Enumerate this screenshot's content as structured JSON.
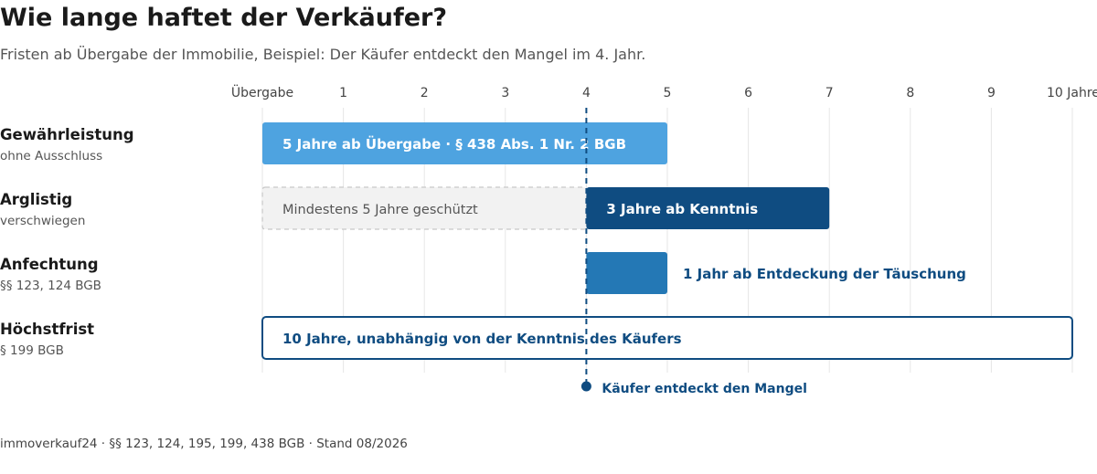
{
  "header": {
    "title": "Wie lange haftet der Verkäufer?",
    "subtitle": "Fristen ab Übergabe der Immobilie, Beispiel: Der Käufer entdeckt den Mangel im 4. Jahr."
  },
  "footer": {
    "source": "immoverkauf24 · §§ 123, 124, 195, 199, 438 BGB · Stand 08/2026"
  },
  "chart_data": {
    "type": "bar",
    "orientation": "horizontal-timeline",
    "x_unit": "Jahre ab Übergabe",
    "xlim": [
      0,
      10
    ],
    "x_ticks": [
      {
        "value": 0,
        "label": "Übergabe"
      },
      {
        "value": 1,
        "label": "1"
      },
      {
        "value": 2,
        "label": "2"
      },
      {
        "value": 3,
        "label": "3"
      },
      {
        "value": 4,
        "label": "4"
      },
      {
        "value": 5,
        "label": "5"
      },
      {
        "value": 6,
        "label": "6"
      },
      {
        "value": 7,
        "label": "7"
      },
      {
        "value": 8,
        "label": "8"
      },
      {
        "value": 9,
        "label": "9"
      },
      {
        "value": 10,
        "label": "10 Jahre"
      }
    ],
    "grid": true,
    "rows": [
      {
        "title": "Gewährleistung",
        "subtitle": "ohne Ausschluss",
        "segments": [
          {
            "start": 0,
            "end": 5,
            "label": "5 Jahre ab Übergabe · § 438 Abs. 1 Nr. 2 BGB",
            "style": "solid-light",
            "color": "#4ea3e0"
          }
        ]
      },
      {
        "title": "Arglistig",
        "subtitle": "verschwiegen",
        "segments": [
          {
            "start": 0,
            "end": 4,
            "label": "Mindestens 5 Jahre geschützt",
            "style": "dashed",
            "color": "#f2f2f2"
          },
          {
            "start": 4,
            "end": 7,
            "label": "3 Jahre ab Kenntnis",
            "style": "solid-dark",
            "color": "#0f4c81"
          }
        ]
      },
      {
        "title": "Anfechtung",
        "subtitle": "§§ 123, 124 BGB",
        "segments": [
          {
            "start": 4,
            "end": 5,
            "label": "1 Jahr ab Entdeckung der Täuschung",
            "style": "solid-mid-label-outside",
            "color": "#2478b5"
          }
        ]
      },
      {
        "title": "Höchstfrist",
        "subtitle": "§ 199 BGB",
        "segments": [
          {
            "start": 0,
            "end": 10,
            "label": "10 Jahre, unabhängig von der Kenntnis des Käufers",
            "style": "outline",
            "color": "#0f4c81"
          }
        ]
      }
    ],
    "marker": {
      "x": 4,
      "label": "Käufer entdeckt den Mangel",
      "color": "#0f4c81"
    }
  },
  "colors": {
    "grid": "#e6e6e6",
    "dark_blue": "#0f4c81",
    "light_blue": "#4ea3e0",
    "mid_blue": "#2478b5",
    "grey_fill": "#f2f2f2",
    "grey_stroke": "#c8c8c8"
  }
}
